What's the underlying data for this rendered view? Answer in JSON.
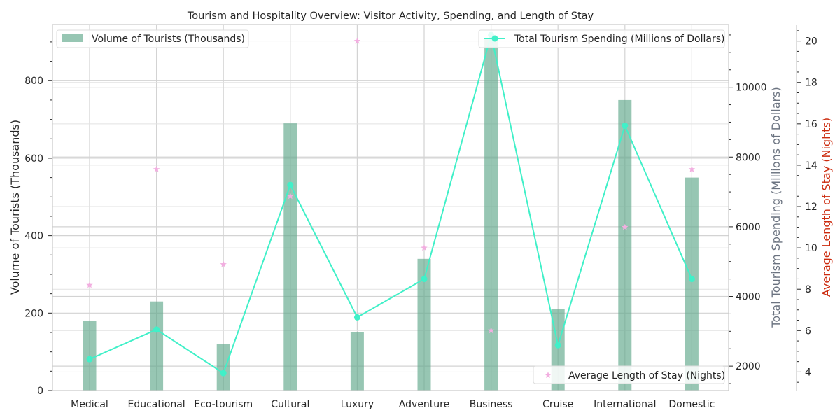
{
  "chart_data": {
    "type": "bar",
    "title": "Tourism and Hospitality Overview: Visitor Activity, Spending, and Length of Stay",
    "categories": [
      "Medical",
      "Educational",
      "Eco-tourism",
      "Cultural",
      "Luxury",
      "Adventure",
      "Business",
      "Cruise",
      "International",
      "Domestic"
    ],
    "series": [
      {
        "name": "Volume of Tourists (Thousands)",
        "type": "bar",
        "axis": "left",
        "color": "#5fa88a",
        "values": [
          180,
          230,
          120,
          690,
          150,
          340,
          910,
          210,
          750,
          550
        ]
      },
      {
        "name": "Total Tourism Spending (Millions of Dollars)",
        "type": "line",
        "axis": "right",
        "color": "#40f0c8",
        "values": [
          2200,
          3050,
          1800,
          7200,
          3400,
          4500,
          11500,
          2600,
          8900,
          4500
        ]
      },
      {
        "name": "Average Length of Stay (Nights)",
        "type": "scatter",
        "axis": "right2",
        "color": "#f2aee0",
        "marker": "star",
        "values": [
          8.2,
          13.8,
          9.2,
          12.5,
          20.0,
          10.0,
          6.0,
          20.0,
          11.0,
          13.8
        ]
      }
    ],
    "left_axis": {
      "label": "Volume of Tourists (Thousands)",
      "ticks": [
        0,
        200,
        400,
        600,
        800
      ],
      "ylim": [
        0,
        945
      ]
    },
    "right_axis": {
      "label": "Total Tourism Spending (Millions of Dollars)",
      "label_color": "#6b7380",
      "ticks": [
        2000,
        4000,
        6000,
        8000,
        10000
      ],
      "ylim": [
        1300,
        11800
      ]
    },
    "right_axis_2": {
      "label": "Average Length of Stay (Nights)",
      "label_color": "#cc2b0e",
      "ticks": [
        4,
        6,
        8,
        10,
        12,
        14,
        16,
        18,
        20
      ],
      "ylim": [
        3.1,
        20.8
      ]
    },
    "grid": true,
    "legend_placement": [
      "top-left",
      "top-right",
      "bottom-right"
    ]
  }
}
